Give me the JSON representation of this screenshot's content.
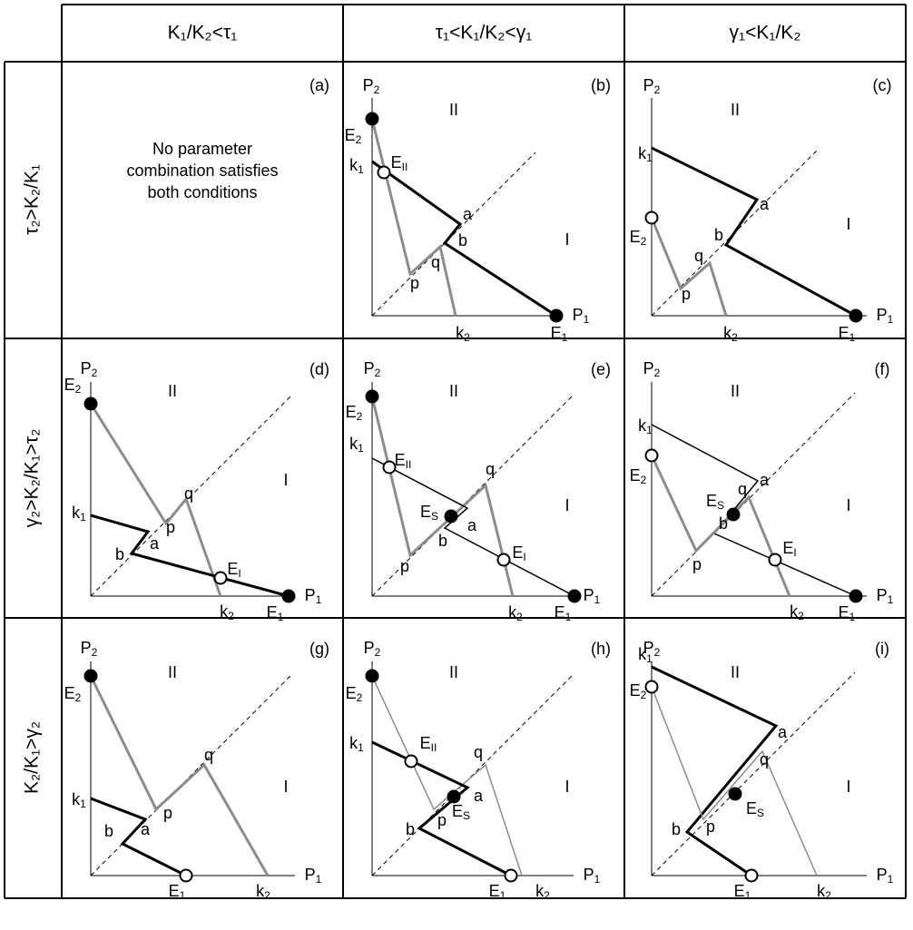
{
  "column_headers": [
    "K₁/K₂<τ₁",
    "τ₁<K₁/K₂<γ₁",
    "γ₁<K₁/K₂"
  ],
  "row_headers": [
    "τ₂>K₂/K₁",
    "γ₂>K₂/K₁>τ₂",
    "K₂/K₁>γ₂"
  ],
  "panels": [
    {
      "tag": "(a)",
      "note": [
        "No parameter",
        "combination satisfies",
        "both conditions"
      ]
    },
    {
      "tag": "(b)",
      "labels": [
        {
          "text": "P",
          "sub": "2"
        },
        {
          "text": "P",
          "sub": "1"
        },
        {
          "text": "II"
        },
        {
          "text": "I"
        },
        {
          "text": "E",
          "sub": "2"
        },
        {
          "text": "k",
          "sub": "1"
        },
        {
          "text": "E",
          "sub": "II"
        },
        {
          "text": "a"
        },
        {
          "text": "b"
        },
        {
          "text": "p"
        },
        {
          "text": "q"
        },
        {
          "text": "k",
          "sub": "2"
        },
        {
          "text": "E",
          "sub": "1"
        }
      ]
    },
    {
      "tag": "(c)",
      "labels": [
        {
          "text": "P",
          "sub": "2"
        },
        {
          "text": "P",
          "sub": "1"
        },
        {
          "text": "II"
        },
        {
          "text": "I"
        },
        {
          "text": "E",
          "sub": "2"
        },
        {
          "text": "k",
          "sub": "1"
        },
        {
          "text": "a"
        },
        {
          "text": "b"
        },
        {
          "text": "p"
        },
        {
          "text": "q"
        },
        {
          "text": "k",
          "sub": "2"
        },
        {
          "text": "E",
          "sub": "1"
        }
      ]
    },
    {
      "tag": "(d)",
      "labels": [
        {
          "text": "P",
          "sub": "2"
        },
        {
          "text": "P",
          "sub": "1"
        },
        {
          "text": "II"
        },
        {
          "text": "I"
        },
        {
          "text": "E",
          "sub": "2"
        },
        {
          "text": "k",
          "sub": "1"
        },
        {
          "text": "a"
        },
        {
          "text": "b"
        },
        {
          "text": "p"
        },
        {
          "text": "q"
        },
        {
          "text": "E",
          "sub": "I"
        },
        {
          "text": "k",
          "sub": "2"
        },
        {
          "text": "E",
          "sub": "1"
        }
      ]
    },
    {
      "tag": "(e)",
      "labels": [
        {
          "text": "P",
          "sub": "2"
        },
        {
          "text": "P",
          "sub": "1"
        },
        {
          "text": "II"
        },
        {
          "text": "I"
        },
        {
          "text": "E",
          "sub": "2"
        },
        {
          "text": "k",
          "sub": "1"
        },
        {
          "text": "E",
          "sub": "II"
        },
        {
          "text": "E",
          "sub": "S"
        },
        {
          "text": "E",
          "sub": "I"
        },
        {
          "text": "a"
        },
        {
          "text": "b"
        },
        {
          "text": "p"
        },
        {
          "text": "q"
        },
        {
          "text": "k",
          "sub": "2"
        },
        {
          "text": "E",
          "sub": "1"
        }
      ]
    },
    {
      "tag": "(f)",
      "labels": [
        {
          "text": "P",
          "sub": "2"
        },
        {
          "text": "P",
          "sub": "1"
        },
        {
          "text": "II"
        },
        {
          "text": "I"
        },
        {
          "text": "E",
          "sub": "2"
        },
        {
          "text": "k",
          "sub": "1"
        },
        {
          "text": "E",
          "sub": "S"
        },
        {
          "text": "E",
          "sub": "I"
        },
        {
          "text": "a"
        },
        {
          "text": "b"
        },
        {
          "text": "p"
        },
        {
          "text": "q"
        },
        {
          "text": "k",
          "sub": "2"
        },
        {
          "text": "E",
          "sub": "1"
        }
      ]
    },
    {
      "tag": "(g)",
      "labels": [
        {
          "text": "P",
          "sub": "2"
        },
        {
          "text": "P",
          "sub": "1"
        },
        {
          "text": "II"
        },
        {
          "text": "I"
        },
        {
          "text": "E",
          "sub": "2"
        },
        {
          "text": "k",
          "sub": "1"
        },
        {
          "text": "a"
        },
        {
          "text": "b"
        },
        {
          "text": "p"
        },
        {
          "text": "q"
        },
        {
          "text": "E",
          "sub": "1"
        },
        {
          "text": "k",
          "sub": "2"
        }
      ]
    },
    {
      "tag": "(h)",
      "labels": [
        {
          "text": "P",
          "sub": "2"
        },
        {
          "text": "P",
          "sub": "1"
        },
        {
          "text": "II"
        },
        {
          "text": "I"
        },
        {
          "text": "E",
          "sub": "2"
        },
        {
          "text": "k",
          "sub": "1"
        },
        {
          "text": "E",
          "sub": "II"
        },
        {
          "text": "E",
          "sub": "S"
        },
        {
          "text": "a"
        },
        {
          "text": "b"
        },
        {
          "text": "p"
        },
        {
          "text": "q"
        },
        {
          "text": "E",
          "sub": "1"
        },
        {
          "text": "k",
          "sub": "2"
        }
      ]
    },
    {
      "tag": "(i)",
      "labels": [
        {
          "text": "P",
          "sub": "2"
        },
        {
          "text": "P",
          "sub": "1"
        },
        {
          "text": "II"
        },
        {
          "text": "I"
        },
        {
          "text": "E",
          "sub": "2"
        },
        {
          "text": "k",
          "sub": "1"
        },
        {
          "text": "E",
          "sub": "S"
        },
        {
          "text": "a"
        },
        {
          "text": "b"
        },
        {
          "text": "p"
        },
        {
          "text": "q"
        },
        {
          "text": "E",
          "sub": "1"
        },
        {
          "text": "k",
          "sub": "2"
        }
      ]
    }
  ]
}
